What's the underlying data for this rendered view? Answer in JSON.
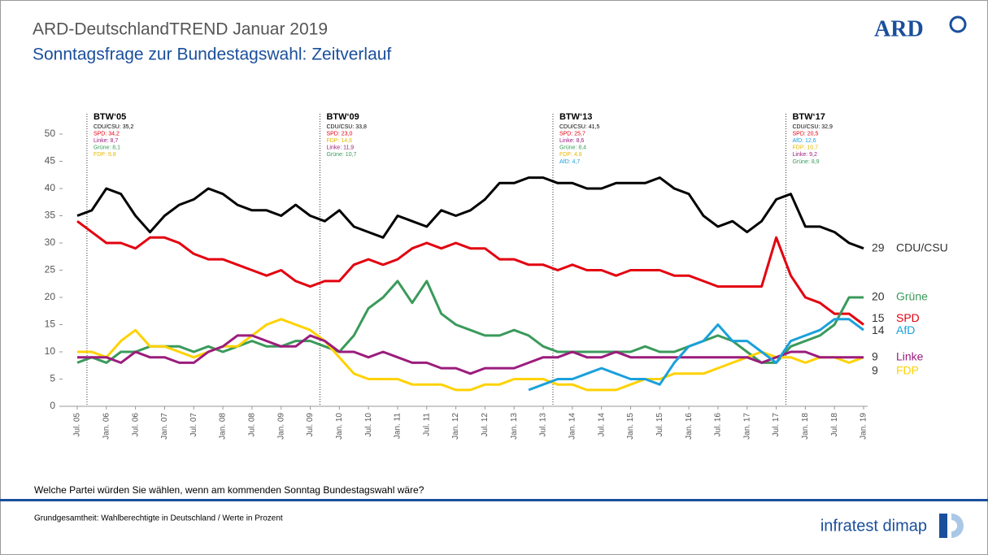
{
  "header": {
    "title": "ARD-DeutschlandTREND Januar 2019",
    "subtitle": "Sonntagsfrage zur Bundestagswahl: Zeitverlauf",
    "logo": "ARD"
  },
  "chart_data": {
    "type": "line",
    "categories": [
      "Jul. 05",
      null,
      "Jan. 06",
      null,
      "Jul. 06",
      null,
      "Jan. 07",
      null,
      "Jul. 07",
      null,
      "Jan. 08",
      null,
      "Jul. 08",
      null,
      "Jan. 09",
      null,
      "Jul. 09",
      null,
      "Jan. 10",
      null,
      "Jul. 10",
      null,
      "Jan. 11",
      null,
      "Jul. 11",
      null,
      "Jan. 12",
      null,
      "Jul. 12",
      null,
      "Jan. 13",
      null,
      "Jul. 13",
      null,
      "Jan. 14",
      null,
      "Jul. 14",
      null,
      "Jan. 15",
      null,
      "Jul. 15",
      null,
      "Jan. 16",
      null,
      "Jul. 16",
      null,
      "Jan. 17",
      null,
      "Jul. 17",
      null,
      "Jan. 18",
      null,
      "Jul. 18",
      null,
      "Jan. 19"
    ],
    "series": [
      {
        "name": "CDU/CSU",
        "color": "#000000",
        "values": [
          35,
          36,
          40,
          39,
          35,
          32,
          35,
          37,
          38,
          40,
          39,
          37,
          36,
          36,
          35,
          37,
          35,
          34,
          36,
          33,
          32,
          31,
          35,
          34,
          33,
          36,
          35,
          36,
          38,
          41,
          41,
          42,
          42,
          41,
          41,
          40,
          40,
          41,
          41,
          41,
          42,
          40,
          39,
          35,
          33,
          34,
          32,
          34,
          38,
          39,
          33,
          33,
          32,
          30,
          29
        ]
      },
      {
        "name": "SPD",
        "color": "#e3000f",
        "values": [
          34,
          32,
          30,
          30,
          29,
          31,
          31,
          30,
          28,
          27,
          27,
          26,
          25,
          24,
          25,
          23,
          22,
          23,
          23,
          26,
          27,
          26,
          27,
          29,
          30,
          29,
          30,
          29,
          29,
          27,
          27,
          26,
          26,
          25,
          26,
          25,
          25,
          24,
          25,
          25,
          25,
          24,
          24,
          23,
          22,
          22,
          22,
          22,
          31,
          24,
          20,
          19,
          17,
          17,
          15
        ]
      },
      {
        "name": "Grüne",
        "color": "#3a9a5b",
        "values": [
          8,
          9,
          8,
          10,
          10,
          11,
          11,
          11,
          10,
          11,
          10,
          11,
          12,
          11,
          11,
          12,
          12,
          11,
          10,
          13,
          18,
          20,
          23,
          19,
          23,
          17,
          15,
          14,
          13,
          13,
          14,
          13,
          11,
          10,
          10,
          10,
          10,
          10,
          10,
          11,
          10,
          10,
          11,
          12,
          13,
          12,
          10,
          8,
          8,
          11,
          12,
          13,
          15,
          20,
          20
        ]
      },
      {
        "name": "FDP",
        "color": "#ffd200",
        "values": [
          10,
          10,
          9,
          12,
          14,
          11,
          11,
          10,
          9,
          10,
          11,
          11,
          13,
          15,
          16,
          15,
          14,
          12,
          9,
          6,
          5,
          5,
          5,
          4,
          4,
          4,
          3,
          3,
          4,
          4,
          5,
          5,
          5,
          4,
          4,
          3,
          3,
          3,
          4,
          5,
          5,
          6,
          6,
          6,
          7,
          8,
          9,
          10,
          9,
          9,
          8,
          9,
          9,
          8,
          9
        ]
      },
      {
        "name": "Linke",
        "color": "#9b1c7c",
        "values": [
          9,
          9,
          9,
          8,
          10,
          9,
          9,
          8,
          8,
          10,
          11,
          13,
          13,
          12,
          11,
          11,
          13,
          12,
          10,
          10,
          9,
          10,
          9,
          8,
          8,
          7,
          7,
          6,
          7,
          7,
          7,
          8,
          9,
          9,
          10,
          9,
          9,
          10,
          9,
          9,
          9,
          9,
          9,
          9,
          9,
          9,
          9,
          8,
          9,
          10,
          10,
          9,
          9,
          9,
          9
        ]
      },
      {
        "name": "AfD",
        "color": "#1aa0dc",
        "values": [
          null,
          null,
          null,
          null,
          null,
          null,
          null,
          null,
          null,
          null,
          null,
          null,
          null,
          null,
          null,
          null,
          null,
          null,
          null,
          null,
          null,
          null,
          null,
          null,
          null,
          null,
          null,
          null,
          null,
          null,
          null,
          3,
          4,
          5,
          5,
          6,
          7,
          6,
          5,
          5,
          4,
          8,
          11,
          12,
          15,
          12,
          12,
          10,
          8,
          12,
          13,
          14,
          16,
          16,
          14
        ]
      }
    ],
    "ylim": [
      0,
      50
    ],
    "yticks": [
      0,
      5,
      10,
      15,
      20,
      25,
      30,
      35,
      40,
      45,
      50
    ],
    "annotations": [
      {
        "title": "BTW‘05",
        "lines": [
          {
            "text": "CDU/CSU: 35,2",
            "color": "#000000"
          },
          {
            "text": "SPD: 34,2",
            "color": "#e3000f"
          },
          {
            "text": "Linke: 8,7",
            "color": "#9b1c7c"
          },
          {
            "text": "Grüne: 8,1",
            "color": "#3a9a5b"
          },
          {
            "text": "FDP: 9,8",
            "color": "#e6b800"
          }
        ]
      },
      {
        "title": "BTW‘09",
        "lines": [
          {
            "text": "CDU/CSU: 33,8",
            "color": "#000000"
          },
          {
            "text": "SPD: 23,0",
            "color": "#e3000f"
          },
          {
            "text": "FDP: 14,6",
            "color": "#e6b800"
          },
          {
            "text": "Linke: 11,9",
            "color": "#9b1c7c"
          },
          {
            "text": "Grüne: 10,7",
            "color": "#3a9a5b"
          }
        ]
      },
      {
        "title": "BTW‘13",
        "lines": [
          {
            "text": "CDU/CSU: 41,5",
            "color": "#000000"
          },
          {
            "text": "SPD: 25,7",
            "color": "#e3000f"
          },
          {
            "text": "Linke: 8,6",
            "color": "#9b1c7c"
          },
          {
            "text": "Grüne: 8,4",
            "color": "#3a9a5b"
          },
          {
            "text": "FDP: 4,8",
            "color": "#e6b800"
          },
          {
            "text": "AfD: 4,7",
            "color": "#1aa0dc"
          }
        ]
      },
      {
        "title": "BTW‘17",
        "lines": [
          {
            "text": "CDU/CSU: 32,9",
            "color": "#000000"
          },
          {
            "text": "SPD: 20,5",
            "color": "#e3000f"
          },
          {
            "text": "AfD: 12,6",
            "color": "#1aa0dc"
          },
          {
            "text": "FDP: 10,7",
            "color": "#e6b800"
          },
          {
            "text": "Linke: 9,2",
            "color": "#9b1c7c"
          },
          {
            "text": "Grüne: 8,9",
            "color": "#3a9a5b"
          }
        ]
      }
    ]
  },
  "question": "Welche Partei würden Sie wählen, wenn am kommenden Sonntag Bundestagswahl wäre?",
  "footer": {
    "note": "Grundgesamtheit: Wahlberechtigte in Deutschland  / Werte in Prozent",
    "brand": "infratest dimap"
  }
}
